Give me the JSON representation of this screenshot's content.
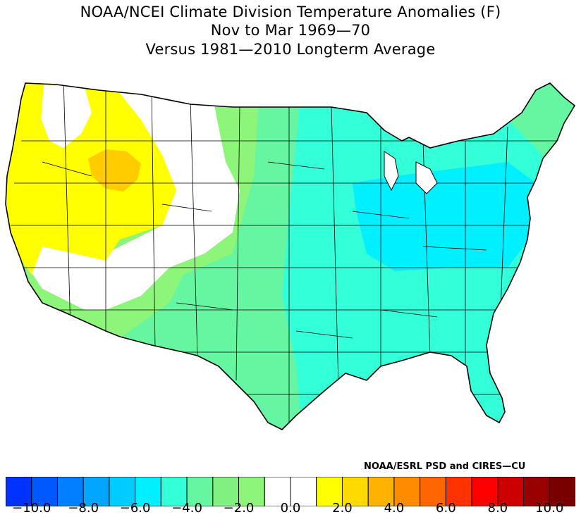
{
  "title": {
    "line1": "NOAA/NCEI Climate Division Temperature Anomalies (F)",
    "line2": "Nov to Mar 1969—70",
    "line3": "Versus 1981—2010 Longterm Average"
  },
  "credit": "NOAA/ESRL PSD and CIRES—CU",
  "map": {
    "region": "Contiguous United States climate divisions",
    "regions": [
      {
        "name": "Pacific Northwest / Great Basin warm core",
        "bin": [
          0.0,
          1.0
        ],
        "color": "#ffff00"
      },
      {
        "name": "Idaho / Wyoming warm spot",
        "bin": [
          1.0,
          2.0
        ],
        "color": "#ffcc00"
      },
      {
        "name": "Interior West (near normal)",
        "bin": [
          -1.0,
          1.0
        ],
        "color": "#ffffff"
      },
      {
        "name": "High Plains / Southwest",
        "bin": [
          -2.0,
          -1.0
        ],
        "color": "#8cf57a"
      },
      {
        "name": "Central Plains / Texas",
        "bin": [
          -3.0,
          -2.0
        ],
        "color": "#66f5a0"
      },
      {
        "name": "Midwest / Great Lakes",
        "bin": [
          -4.0,
          -3.0
        ],
        "color": "#33ffd9"
      },
      {
        "name": "Ohio Valley / Appalachians",
        "bin": [
          -5.0,
          -4.0
        ],
        "color": "#00f0ff"
      },
      {
        "name": "Southeast",
        "bin": [
          -4.0,
          -3.0
        ],
        "color": "#33ffd9"
      },
      {
        "name": "Northeast",
        "bin": [
          -3.0,
          -2.0
        ],
        "color": "#66f5a0"
      }
    ]
  },
  "colorbar": {
    "colors": [
      "#0033ff",
      "#0059ff",
      "#0080ff",
      "#00a6ff",
      "#00ccff",
      "#00f0ff",
      "#33ffd9",
      "#66f5a0",
      "#80f080",
      "#8cf57a",
      "#ffffff",
      "#ffffff",
      "#ffff00",
      "#ffd900",
      "#ffb300",
      "#ff8c00",
      "#ff6600",
      "#ff3300",
      "#ff0000",
      "#cc0000",
      "#990000",
      "#7a0000"
    ],
    "ticks": [
      "-10.0",
      "-8.0",
      "-6.0",
      "-4.0",
      "-2.0",
      "0.0",
      "2.0",
      "4.0",
      "6.0",
      "8.0",
      "10.0"
    ],
    "tick_values": [
      -10,
      -8,
      -6,
      -4,
      -2,
      0,
      2,
      4,
      6,
      8,
      10
    ],
    "range": [
      -11,
      11
    ],
    "units": "F"
  }
}
